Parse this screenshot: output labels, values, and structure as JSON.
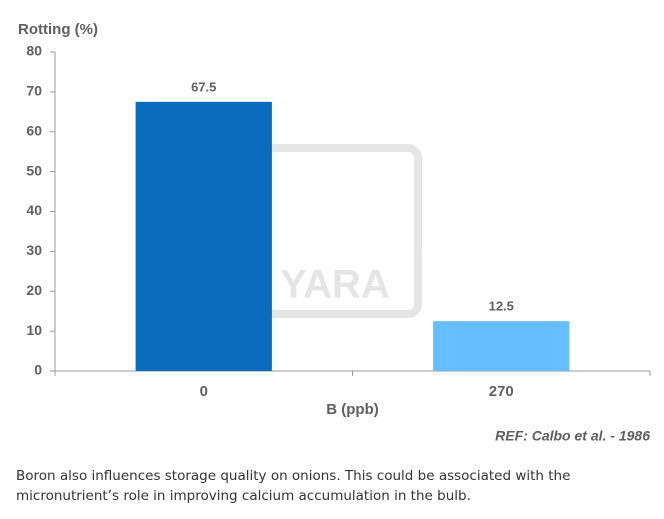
{
  "chart_data": {
    "type": "bar",
    "y_label": "Rotting (%)",
    "x_label": "B (ppb)",
    "categories": [
      "0",
      "270"
    ],
    "values": [
      67.5,
      12.5
    ],
    "colors": [
      "#0a6cbd",
      "#66bdff"
    ],
    "ylim": [
      0,
      80
    ],
    "yticks": [
      0,
      10,
      20,
      30,
      40,
      50,
      60,
      70,
      80
    ],
    "grid": false,
    "source": "REF: Calbo et al. - 1986",
    "watermark": "YARA"
  },
  "caption": "Boron also influences storage quality on onions. This could be associated with the micronutrient’s role in improving calcium accumulation in the bulb."
}
